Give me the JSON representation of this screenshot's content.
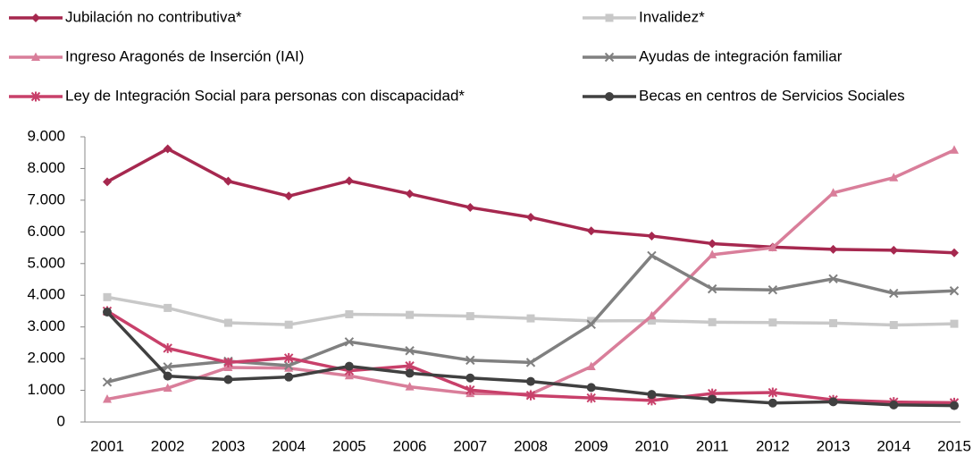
{
  "chart_data": {
    "type": "line",
    "categories": [
      "2001",
      "2002",
      "2003",
      "2004",
      "2005",
      "2006",
      "2007",
      "2008",
      "2009",
      "2010",
      "2011",
      "2012",
      "2013",
      "2014",
      "2015"
    ],
    "ylim": [
      0,
      9000
    ],
    "yticks": [
      0,
      {
        "value": 1000,
        "label": "1.000"
      },
      {
        "value": 2000,
        "label": "2.000"
      },
      {
        "value": 3000,
        "label": "3.000"
      },
      {
        "value": 4000,
        "label": "4.000"
      },
      {
        "value": 5000,
        "label": "5.000"
      },
      {
        "value": 6000,
        "label": "6.000"
      },
      {
        "value": 7000,
        "label": "7.000"
      },
      {
        "value": 8000,
        "label": "8.000"
      },
      {
        "value": 9000,
        "label": "9.000"
      }
    ],
    "grid": false,
    "series": [
      {
        "name": "Jubilación no contributiva*",
        "color": "#a6284f",
        "marker": "diamond",
        "values": [
          7580,
          8620,
          7600,
          7130,
          7610,
          7200,
          6770,
          6460,
          6030,
          5870,
          5630,
          5520,
          5450,
          5420,
          5340
        ]
      },
      {
        "name": "Invalidez*",
        "color": "#c8c8c8",
        "marker": "square",
        "values": [
          3940,
          3600,
          3130,
          3070,
          3400,
          3380,
          3340,
          3270,
          3190,
          3200,
          3150,
          3140,
          3120,
          3060,
          3100
        ]
      },
      {
        "name": "Ingreso Aragonés de Inserción (IAI)",
        "color": "#d97e9a",
        "marker": "triangle",
        "values": [
          720,
          1070,
          1720,
          1700,
          1460,
          1110,
          900,
          880,
          1750,
          3350,
          5280,
          5500,
          7230,
          7710,
          8580
        ]
      },
      {
        "name": "Ayudas de integración familiar",
        "color": "#808080",
        "marker": "x",
        "values": [
          1260,
          1740,
          1920,
          1780,
          2530,
          2250,
          1950,
          1880,
          3080,
          5250,
          4200,
          4170,
          4520,
          4060,
          4140
        ]
      },
      {
        "name": "Ley de Integración Social para personas con discapacidad*",
        "color": "#c8406a",
        "marker": "star",
        "values": [
          3500,
          2330,
          1880,
          2020,
          1620,
          1770,
          1010,
          840,
          760,
          680,
          900,
          930,
          700,
          630,
          610
        ]
      },
      {
        "name": "Becas en centros de Servicios Sociales",
        "color": "#404040",
        "marker": "circle",
        "values": [
          3470,
          1450,
          1340,
          1420,
          1760,
          1540,
          1390,
          1280,
          1090,
          870,
          720,
          600,
          640,
          540,
          520
        ]
      }
    ]
  }
}
